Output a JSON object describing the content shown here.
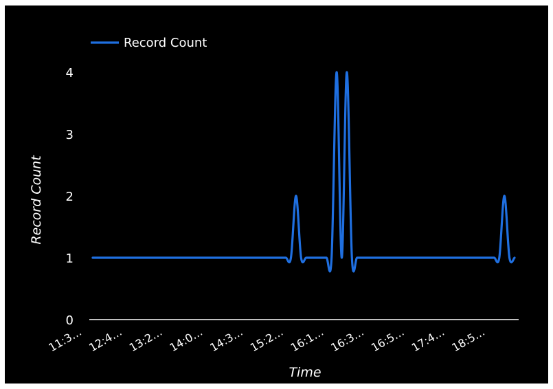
{
  "colors": {
    "background": "#000000",
    "series": "#1f6fe0",
    "axis": "#ffffff",
    "text": "#ffffff"
  },
  "chart_data": {
    "type": "line",
    "xlabel": "Time",
    "ylabel": "Record Count",
    "ylim": [
      0,
      4
    ],
    "yticks": [
      "0",
      "1",
      "2",
      "3",
      "4"
    ],
    "x_tick_labels": [
      "11:3…",
      "12:4…",
      "13:2…",
      "14:0…",
      "14:3…",
      "15:2…",
      "16:1…",
      "16:3…",
      "16:5…",
      "17:4…",
      "18:5…"
    ],
    "grid": false,
    "legend": "top-left",
    "smooth": true,
    "series": [
      {
        "name": "Record Count",
        "color": "#1f6fe0",
        "x": [
          0,
          1,
          2,
          3,
          4,
          5,
          6,
          7,
          8,
          9,
          10,
          11,
          12,
          13,
          14,
          15,
          16,
          17,
          18,
          19,
          20,
          21,
          22,
          23,
          24,
          25,
          26,
          27,
          28,
          29,
          30,
          31,
          32,
          33,
          34,
          35,
          36,
          37,
          38,
          39,
          40,
          41,
          42,
          43,
          44,
          45,
          46,
          47,
          48,
          49,
          50,
          51,
          52,
          53,
          54,
          55,
          56,
          57,
          58,
          59,
          60,
          61,
          62,
          63,
          64,
          65,
          66,
          67,
          68,
          69,
          70,
          71,
          72,
          73,
          74,
          75,
          76,
          77,
          78,
          79,
          80,
          81,
          82,
          83
        ],
        "values": [
          1,
          1,
          1,
          1,
          1,
          1,
          1,
          1,
          1,
          1,
          1,
          1,
          1,
          1,
          1,
          1,
          1,
          1,
          1,
          1,
          1,
          1,
          1,
          1,
          1,
          1,
          1,
          1,
          1,
          1,
          1,
          1,
          1,
          1,
          1,
          1,
          1,
          1,
          1,
          1,
          2,
          1,
          1,
          1,
          1,
          1,
          1,
          1,
          4,
          1,
          4,
          1,
          1,
          1,
          1,
          1,
          1,
          1,
          1,
          1,
          1,
          1,
          1,
          1,
          1,
          1,
          1,
          1,
          1,
          1,
          1,
          1,
          1,
          1,
          1,
          1,
          1,
          1,
          1,
          1,
          1,
          2,
          1,
          1
        ]
      }
    ]
  }
}
